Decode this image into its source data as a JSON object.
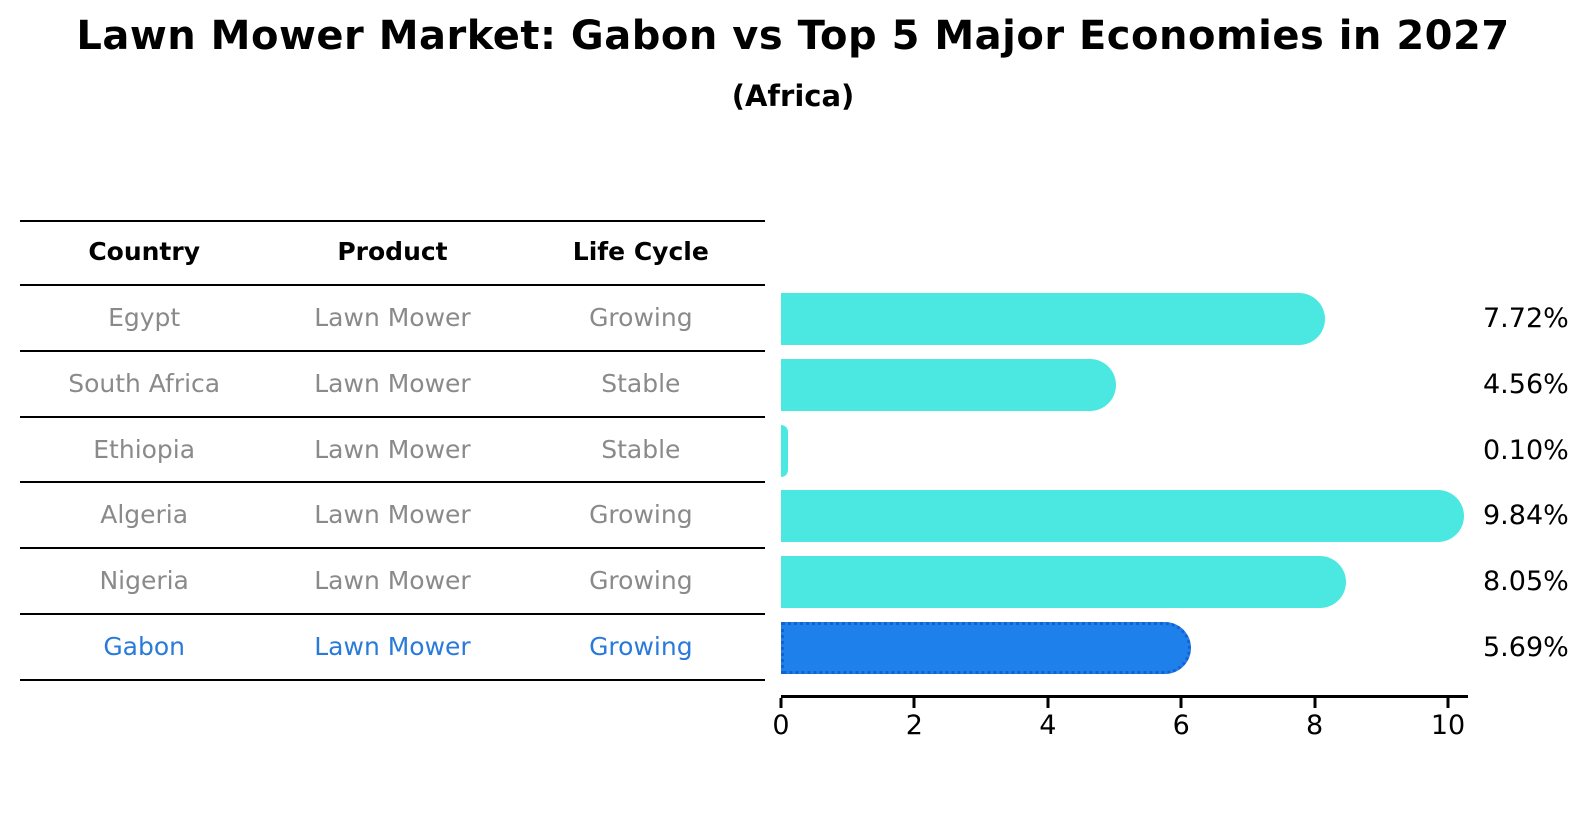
{
  "title": "Lawn Mower Market: Gabon vs Top 5 Major Economies in 2027",
  "subtitle": "(Africa)",
  "table": {
    "headers": [
      "Country",
      "Product",
      "Life Cycle"
    ],
    "rows": [
      {
        "country": "Egypt",
        "product": "Lawn Mower",
        "life_cycle": "Growing",
        "highlight": false
      },
      {
        "country": "South Africa",
        "product": "Lawn Mower",
        "life_cycle": "Stable",
        "highlight": false
      },
      {
        "country": "Ethiopia",
        "product": "Lawn Mower",
        "life_cycle": "Stable",
        "highlight": false
      },
      {
        "country": "Algeria",
        "product": "Lawn Mower",
        "life_cycle": "Growing",
        "highlight": false
      },
      {
        "country": "Nigeria",
        "product": "Lawn Mower",
        "life_cycle": "Growing",
        "highlight": false
      },
      {
        "country": "Gabon",
        "product": "Lawn Mower",
        "life_cycle": "Growing",
        "highlight": true
      }
    ]
  },
  "chart_data": {
    "type": "bar",
    "orientation": "horizontal",
    "title": "Lawn Mower Market: Gabon vs Top 5 Major Economies in 2027",
    "subtitle": "(Africa)",
    "categories": [
      "Egypt",
      "South Africa",
      "Ethiopia",
      "Algeria",
      "Nigeria",
      "Gabon"
    ],
    "values": [
      7.72,
      4.56,
      0.1,
      9.84,
      8.05,
      5.69
    ],
    "value_labels": [
      "7.72%",
      "4.56%",
      "0.10%",
      "9.84%",
      "8.05%",
      "5.69%"
    ],
    "x_ticks": [
      "0",
      "2",
      "4",
      "6",
      "8",
      "10"
    ],
    "x_tick_values": [
      0,
      2,
      4,
      6,
      8,
      10
    ],
    "xlim": [
      0,
      10.3
    ],
    "grid": false,
    "legend": false,
    "highlight_index": 5
  },
  "colors": {
    "bar": "#4BE8E1",
    "highlight_bar": "#1E80EB",
    "highlight_bar_border": "#1462D0",
    "row_text": "#8a8a8a",
    "highlight_text": "#2A7BD9",
    "axis": "#000000"
  }
}
